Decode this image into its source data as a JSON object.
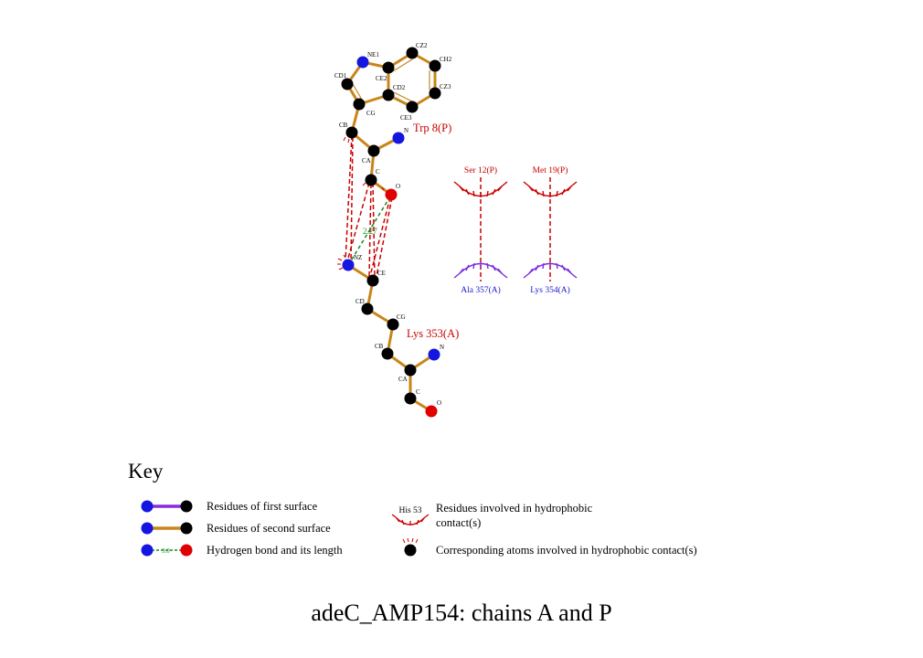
{
  "title": "adeC_AMP154: chains A and P",
  "colors": {
    "bond": "#c8861a",
    "first_surface_bond": "#8a2be2",
    "carbon": "#000000",
    "nitrogen": "#1515e0",
    "oxygen": "#e00000",
    "hbond": "#1a8a1a",
    "hydrophobic_red": "#cc0000",
    "hydrophobic_blue": "#7b2be0",
    "label_red": "#cc0000",
    "label_blue": "#1a1acc"
  },
  "residues": {
    "trp": "Trp 8(P)",
    "lys353": "Lys 353(A)",
    "ser": "Ser 12(P)",
    "met": "Met 19(P)",
    "ala": "Ala 357(A)",
    "lys354": "Lys 354(A)"
  },
  "atoms": {
    "ne1": "NE1",
    "cz2": "CZ2",
    "ch2": "CH2",
    "cd1": "CD1",
    "ce2": "CE2",
    "cd2": "CD2",
    "cz3": "CZ3",
    "ce3": "CE3",
    "cg_trp": "CG",
    "cb_trp": "CB",
    "n_trp": "N",
    "ca_trp": "CA",
    "c_trp": "C",
    "o_trp": "O",
    "nz": "NZ",
    "ce_lys": "CE",
    "cd_lys": "CD",
    "cg_lys": "CG",
    "cb_lys": "CB",
    "n_lys": "N",
    "ca_lys": "CA",
    "c_lys": "C",
    "o_lys": "O"
  },
  "hbond_length": "2.27",
  "key": {
    "title": "Key",
    "first_surface": "Residues of first surface",
    "second_surface": "Residues of second surface",
    "hbond": "Hydrogen bond and its length",
    "hbond_sample": "3.0",
    "hydrophobic_sample_residue": "His 53",
    "hydrophobic_line1": "Residues involved in hydrophobic",
    "hydrophobic_line2": "contact(s)",
    "corresponding_atoms": "Corresponding atoms involved in hydrophobic contact(s)"
  }
}
